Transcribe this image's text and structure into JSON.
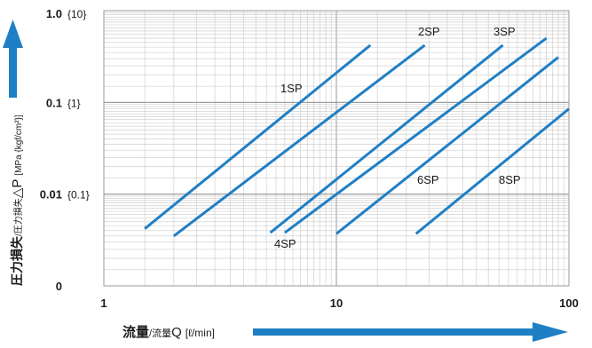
{
  "chart_data": {
    "type": "line",
    "x_scale": "log",
    "y_scale": "log",
    "xlim": [
      1,
      100
    ],
    "ylim": [
      0.001,
      1
    ],
    "grid": true,
    "x_ticks": [
      {
        "value": 1,
        "label": "1"
      },
      {
        "value": 10,
        "label": "10"
      },
      {
        "value": 100,
        "label": "100"
      }
    ],
    "y_ticks": [
      {
        "value": 1,
        "label": "1.0",
        "alt_label": "{10}"
      },
      {
        "value": 0.1,
        "label": "0.1",
        "alt_label": "{1}"
      },
      {
        "value": 0.01,
        "label": "0.01",
        "alt_label": "{0.1}"
      },
      {
        "value": 0.001,
        "label": "0",
        "alt_label": ""
      }
    ],
    "xlabel": {
      "main": "流量",
      "sub": "/流量",
      "var": "Q",
      "unit": "[ℓ/min]"
    },
    "ylabel": {
      "main": "圧力損失",
      "sub": "/圧力損失",
      "var": "△P",
      "unit": "[MPa {kgf/cm²}]"
    },
    "series": [
      {
        "name": "1SP",
        "x": [
          1.5,
          14
        ],
        "y": [
          0.0042,
          0.42
        ]
      },
      {
        "name": "2SP",
        "x": [
          2.0,
          24
        ],
        "y": [
          0.0035,
          0.42
        ]
      },
      {
        "name": "4SP",
        "x": [
          5.2,
          52
        ],
        "y": [
          0.0038,
          0.42
        ]
      },
      {
        "name": "3SP",
        "x": [
          6.0,
          80
        ],
        "y": [
          0.0038,
          0.5
        ]
      },
      {
        "name": "6SP",
        "x": [
          10,
          90
        ],
        "y": [
          0.0037,
          0.31
        ]
      },
      {
        "name": "8SP",
        "x": [
          22,
          100
        ],
        "y": [
          0.0037,
          0.085
        ]
      }
    ],
    "colors": {
      "line": "#1f7fc4",
      "arrow": "#1f7fc4",
      "grid": "#c8c8c8",
      "text": "#1a1a1a"
    }
  }
}
